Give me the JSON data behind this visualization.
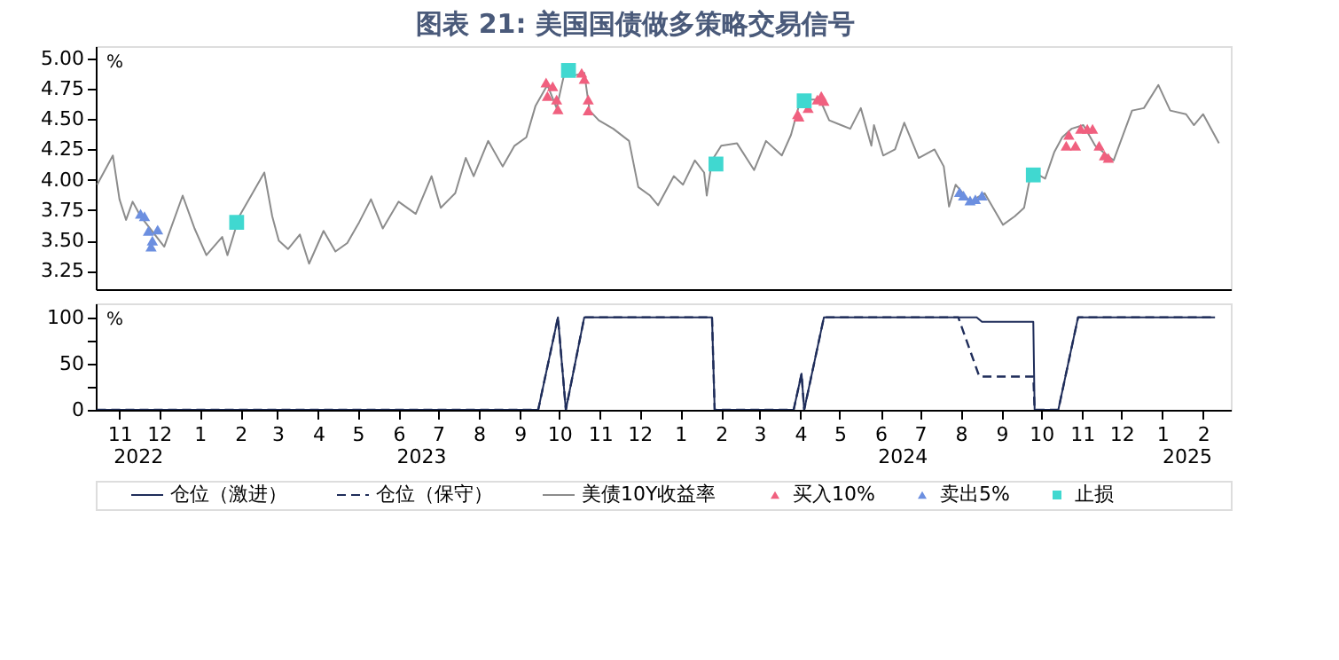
{
  "chart_data": [
    {
      "type": "line",
      "title": "图表 21: 美国国债做多策略交易信号",
      "ylabel": "%",
      "xlim": [
        "2022-10-28",
        "2025-03-08"
      ],
      "ylim": [
        3.1,
        5.1
      ],
      "yticks": [
        {
          "value": 3.25,
          "label": "3.25"
        },
        {
          "value": 3.5,
          "label": "3.50"
        },
        {
          "value": 3.75,
          "label": "3.75"
        },
        {
          "value": 4,
          "label": "4.00"
        },
        {
          "value": 4.25,
          "label": "4.25"
        },
        {
          "value": 4.5,
          "label": "4.50"
        },
        {
          "value": 4.75,
          "label": "4.75"
        },
        {
          "value": 5,
          "label": "5.00"
        }
      ],
      "tick_labels": "y",
      "grid": false,
      "legend": "bottom",
      "series": [
        {
          "name": "美债10Y收益率",
          "color": "#8c8c8c",
          "marker": "none",
          "line_style": "solid",
          "x": [
            "2022-10-29",
            "2022-11-10",
            "2022-11-15",
            "2022-11-20",
            "2022-11-25",
            "2022-12-01",
            "2022-12-19",
            "2023-01-02",
            "2023-01-11",
            "2023-01-20",
            "2023-02-01",
            "2023-02-05",
            "2023-02-14",
            "2023-02-23",
            "2023-03-05",
            "2023-03-11",
            "2023-03-16",
            "2023-03-23",
            "2023-04-01",
            "2023-04-08",
            "2023-04-19",
            "2023-04-28",
            "2023-05-07",
            "2023-05-16",
            "2023-05-25",
            "2023-06-03",
            "2023-06-15",
            "2023-06-28",
            "2023-07-10",
            "2023-07-17",
            "2023-07-28",
            "2023-08-05",
            "2023-08-11",
            "2023-08-22",
            "2023-09-02",
            "2023-09-11",
            "2023-09-20",
            "2023-09-27",
            "2023-10-06",
            "2023-10-13",
            "2023-10-20",
            "2023-10-27",
            "2023-11-03",
            "2023-11-07",
            "2023-11-14",
            "2023-11-25",
            "2023-12-07",
            "2023-12-14",
            "2023-12-23",
            "2023-12-29",
            "2024-01-10",
            "2024-01-17",
            "2024-01-26",
            "2024-02-02",
            "2024-02-04",
            "2024-02-08",
            "2024-02-15",
            "2024-02-27",
            "2024-03-11",
            "2024-03-20",
            "2024-04-01",
            "2024-04-08",
            "2024-04-14",
            "2024-04-19",
            "2024-04-30",
            "2024-05-07",
            "2024-05-16",
            "2024-05-23",
            "2024-05-31",
            "2024-06-08",
            "2024-06-10",
            "2024-06-17",
            "2024-06-26",
            "2024-07-03",
            "2024-07-14",
            "2024-07-26",
            "2024-08-02",
            "2024-08-06",
            "2024-08-11",
            "2024-08-22",
            "2024-09-02",
            "2024-09-16",
            "2024-09-25",
            "2024-10-02",
            "2024-10-06",
            "2024-10-13",
            "2024-10-18",
            "2024-10-25",
            "2024-10-31",
            "2024-11-07",
            "2024-11-16",
            "2024-11-25",
            "2024-12-09",
            "2024-12-23",
            "2025-01-01",
            "2025-01-12",
            "2025-01-21",
            "2025-02-02",
            "2025-02-08",
            "2025-02-15",
            "2025-02-27"
          ],
          "values": [
            3.96,
            4.2,
            3.84,
            3.67,
            3.82,
            3.7,
            3.45,
            3.87,
            3.6,
            3.38,
            3.53,
            3.38,
            3.7,
            3.87,
            4.06,
            3.7,
            3.5,
            3.43,
            3.55,
            3.31,
            3.58,
            3.41,
            3.48,
            3.65,
            3.84,
            3.6,
            3.82,
            3.72,
            4.03,
            3.77,
            3.89,
            4.18,
            4.03,
            4.32,
            4.11,
            4.28,
            4.35,
            4.61,
            4.78,
            4.59,
            4.93,
            4.86,
            4.88,
            4.57,
            4.49,
            4.42,
            4.32,
            3.94,
            3.87,
            3.79,
            4.03,
            3.96,
            4.16,
            4.06,
            3.87,
            4.16,
            4.28,
            4.3,
            4.08,
            4.32,
            4.2,
            4.37,
            4.61,
            4.66,
            4.66,
            4.49,
            4.45,
            4.42,
            4.59,
            4.28,
            4.45,
            4.2,
            4.25,
            4.47,
            4.18,
            4.25,
            4.11,
            3.78,
            3.96,
            3.82,
            3.89,
            3.63,
            3.7,
            3.77,
            3.99,
            4.04,
            4.01,
            4.23,
            4.35,
            4.42,
            4.45,
            4.28,
            4.16,
            4.57,
            4.59,
            4.78,
            4.57,
            4.54,
            4.45,
            4.54,
            4.3
          ]
        },
        {
          "name": "买入10%",
          "type": "scatter",
          "color": "#f0607f",
          "marker": "triangle",
          "x": [
            "2023-10-05",
            "2023-10-06",
            "2023-10-10",
            "2023-10-13",
            "2023-10-14",
            "2023-11-01",
            "2023-11-03",
            "2023-11-06",
            "2023-11-06",
            "2024-04-13",
            "2024-04-14",
            "2024-04-21",
            "2024-04-28",
            "2024-05-01",
            "2024-05-03",
            "2024-11-03",
            "2024-11-05",
            "2024-11-10",
            "2024-11-14",
            "2024-11-19",
            "2024-11-23",
            "2024-11-28",
            "2024-12-02",
            "2024-12-05"
          ],
          "values": [
            4.8,
            4.69,
            4.77,
            4.66,
            4.58,
            4.88,
            4.83,
            4.66,
            4.57,
            4.54,
            4.52,
            4.59,
            4.66,
            4.69,
            4.65,
            4.28,
            4.37,
            4.28,
            4.42,
            4.42,
            4.42,
            4.28,
            4.2,
            4.18
          ]
        },
        {
          "name": "卖出5%",
          "type": "scatter",
          "color": "#6c8fe0",
          "marker": "triangle",
          "x": [
            "2022-12-01",
            "2022-12-04",
            "2022-12-07",
            "2022-12-10",
            "2022-12-14",
            "2022-12-09",
            "2024-08-14",
            "2024-08-17",
            "2024-08-22",
            "2024-08-26",
            "2024-08-31"
          ],
          "values": [
            3.72,
            3.7,
            3.58,
            3.5,
            3.59,
            3.45,
            3.9,
            3.87,
            3.83,
            3.84,
            3.87
          ]
        },
        {
          "name": "止损",
          "type": "scatter",
          "color": "#40d8d0",
          "marker": "square",
          "x": [
            "2023-02-12",
            "2023-10-22",
            "2024-02-11",
            "2024-04-18",
            "2024-10-09"
          ],
          "values": [
            3.65,
            4.9,
            4.13,
            4.65,
            4.04
          ]
        }
      ]
    },
    {
      "type": "line",
      "ylabel": "%",
      "xlim": [
        "2022-10-28",
        "2025-03-08"
      ],
      "ylim": [
        0,
        115
      ],
      "yticks": [
        0,
        {
          "value": 25,
          "label": null
        },
        50,
        {
          "value": 75,
          "label": null
        },
        100
      ],
      "xticks": [
        {
          "value": "2022-11-15",
          "label": "11"
        },
        {
          "value": "2022-12-15",
          "label": "12"
        },
        {
          "value": "2023-01-15",
          "label": "1"
        },
        {
          "value": "2023-02-15",
          "label": "2"
        },
        {
          "value": "2023-03-15",
          "label": "3"
        },
        {
          "value": "2023-04-15",
          "label": "4"
        },
        {
          "value": "2023-05-15",
          "label": "5"
        },
        {
          "value": "2023-06-15",
          "label": "6"
        },
        {
          "value": "2023-07-15",
          "label": "7"
        },
        {
          "value": "2023-08-15",
          "label": "8"
        },
        {
          "value": "2023-09-15",
          "label": "9"
        },
        {
          "value": "2023-10-15",
          "label": "10"
        },
        {
          "value": "2023-11-15",
          "label": "11"
        },
        {
          "value": "2023-12-15",
          "label": "12"
        },
        {
          "value": "2024-01-15",
          "label": "1"
        },
        {
          "value": "2024-02-15",
          "label": "2"
        },
        {
          "value": "2024-03-15",
          "label": "3"
        },
        {
          "value": "2024-04-15",
          "label": "4"
        },
        {
          "value": "2024-05-15",
          "label": "5"
        },
        {
          "value": "2024-06-15",
          "label": "6"
        },
        {
          "value": "2024-07-15",
          "label": "7"
        },
        {
          "value": "2024-08-15",
          "label": "8"
        },
        {
          "value": "2024-09-15",
          "label": "9"
        },
        {
          "value": "2024-10-15",
          "label": "10"
        },
        {
          "value": "2024-11-15",
          "label": "11"
        },
        {
          "value": "2024-12-15",
          "label": "12"
        },
        {
          "value": "2025-01-15",
          "label": "1"
        },
        {
          "value": "2025-02-15",
          "label": "2"
        }
      ],
      "grid": false,
      "legend": "bottom",
      "annotations": [
        "2022",
        "2023",
        "2024",
        "2025"
      ],
      "series": [
        {
          "name": "仓位（激进）",
          "color": "#1f2d5a",
          "marker": "none",
          "line_style": "solid",
          "x": [
            "2022-10-29",
            "2023-09-29",
            "2023-10-14",
            "2023-10-20",
            "2023-11-03",
            "2024-02-08",
            "2024-02-10",
            "2024-04-10",
            "2024-04-16",
            "2024-04-18",
            "2024-05-03",
            "2024-08-27",
            "2024-08-31",
            "2024-10-09",
            "2024-10-10",
            "2024-10-28",
            "2024-11-12",
            "2025-02-24"
          ],
          "values": [
            0,
            0,
            100,
            0,
            100,
            100,
            0,
            0,
            39,
            0,
            100,
            100,
            95,
            95,
            0,
            0,
            100,
            100
          ]
        },
        {
          "name": "仓位（保守）",
          "color": "#1f2d5a",
          "marker": "none",
          "line_style": "dashed",
          "x": [
            "2022-10-29",
            "2023-09-29",
            "2023-10-14",
            "2023-10-20",
            "2023-11-03",
            "2024-02-08",
            "2024-02-10",
            "2024-04-10",
            "2024-04-16",
            "2024-04-18",
            "2024-05-03",
            "2024-08-13",
            "2024-08-29",
            "2024-10-09",
            "2024-10-10",
            "2024-10-28",
            "2024-11-12",
            "2025-02-24"
          ],
          "values": [
            0,
            0,
            100,
            0,
            100,
            100,
            0,
            0,
            39,
            0,
            100,
            100,
            36,
            36,
            0,
            0,
            100,
            100
          ]
        }
      ]
    }
  ]
}
